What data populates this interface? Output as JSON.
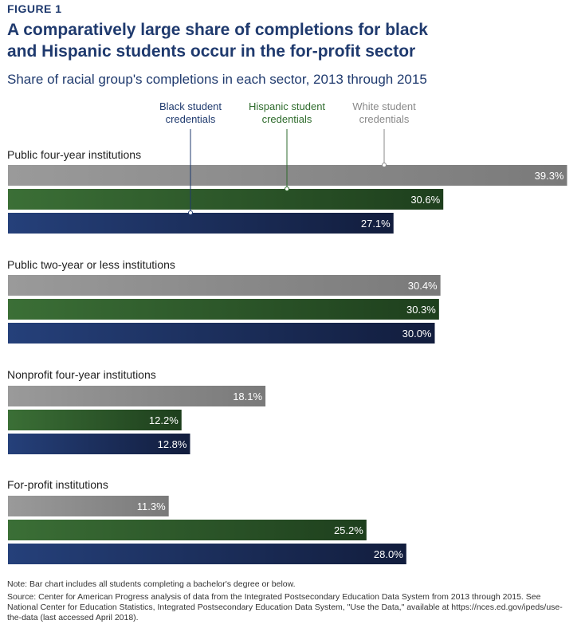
{
  "figure_label": "FIGURE 1",
  "title": "A comparatively large share of completions for black and Hispanic students occur in the for-profit sector",
  "subtitle": "Share of racial group's completions in each sector, 2013 through 2015",
  "note": "Note: Bar chart includes all students completing a bachelor's degree or below.",
  "source": "Source: Center for American Progress analysis of data from the Integrated Postsecondary Education Data System from 2013 through 2015. See National Center for Education Statistics, Integrated Postsecondary Education Data System, \"Use the Data,\" available at https://nces.ed.gov/ipeds/use-the-data (last accessed April 2018).",
  "colors": {
    "title": "#1f3a6e",
    "white": "#8c8c8c",
    "hispanic": "#2e5e2c",
    "black": "#1a2c55"
  },
  "chart_data": {
    "type": "bar",
    "orientation": "horizontal",
    "categories": [
      "Public four-year institutions",
      "Public two-year or less institutions",
      "Nonprofit four-year institutions",
      "For-profit institutions"
    ],
    "series": [
      {
        "name": "White student credentials",
        "key": "white",
        "values": [
          39.3,
          30.4,
          18.1,
          11.3
        ]
      },
      {
        "name": "Hispanic student credentials",
        "key": "hispanic",
        "values": [
          30.6,
          30.3,
          12.2,
          25.2
        ]
      },
      {
        "name": "Black student credentials",
        "key": "black",
        "values": [
          27.1,
          30.0,
          12.8,
          28.0
        ]
      }
    ],
    "legend_order": [
      "black",
      "hispanic",
      "white"
    ],
    "value_suffix": "%"
  }
}
